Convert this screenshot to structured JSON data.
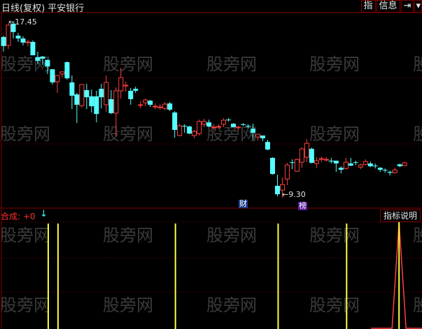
{
  "header": {
    "period": "日线(复权)",
    "stock_name": "平安银行"
  },
  "toolbar": {
    "indicator": "指",
    "info": "信息",
    "next_icon": "skip-forward-icon",
    "menu_icon": "dropdown-icon"
  },
  "watermark": "股旁网",
  "markers": {
    "finance": "财",
    "ranking": "榜"
  },
  "indicator": {
    "label": "合成: +0",
    "arrow_icon": "arrow-down-icon",
    "help_button": "指标说明"
  },
  "colors": {
    "up": "#ff4040",
    "down": "#54ffff",
    "grid": "#800000",
    "signal": "#ffff40",
    "spike": "#ff4040"
  },
  "chart_data": {
    "type": "candlestick",
    "high_label": "17.45",
    "low_label": "9.30",
    "ylim": [
      9.0,
      17.9
    ],
    "candles": [
      [
        16.77,
        16.83,
        16.09,
        16.35
      ],
      [
        16.38,
        17.42,
        16.22,
        17.32
      ],
      [
        17.39,
        17.45,
        16.7,
        17.0
      ],
      [
        16.83,
        16.96,
        16.54,
        16.7
      ],
      [
        16.7,
        16.8,
        16.38,
        16.51
      ],
      [
        16.51,
        16.64,
        16.35,
        16.54
      ],
      [
        16.54,
        16.61,
        15.92,
        15.92
      ],
      [
        15.83,
        16.09,
        15.5,
        15.66
      ],
      [
        15.86,
        15.89,
        15.47,
        15.76
      ],
      [
        15.7,
        15.73,
        15.05,
        15.4
      ],
      [
        15.27,
        15.27,
        14.56,
        14.66
      ],
      [
        14.69,
        14.98,
        14.17,
        14.98
      ],
      [
        15.05,
        15.15,
        14.88,
        15.15
      ],
      [
        15.6,
        15.63,
        14.79,
        14.85
      ],
      [
        14.66,
        14.98,
        13.42,
        14.04
      ],
      [
        14.1,
        14.17,
        12.77,
        13.62
      ],
      [
        13.58,
        14.59,
        13.49,
        14.56
      ],
      [
        14.3,
        14.59,
        13.42,
        13.97
      ],
      [
        14.01,
        14.33,
        13.26,
        13.55
      ],
      [
        14.01,
        14.27,
        12.8,
        13.19
      ],
      [
        14.36,
        14.59,
        13.45,
        13.97
      ],
      [
        13.62,
        14.98,
        13.29,
        14.66
      ],
      [
        13.88,
        14.3,
        13.19,
        13.23
      ],
      [
        13.23,
        14.43,
        12.15,
        14.27
      ],
      [
        14.27,
        15.34,
        13.91,
        14.88
      ],
      [
        14.49,
        14.69,
        14.23,
        14.53
      ],
      [
        14.27,
        14.4,
        13.62,
        13.88
      ],
      [
        14.36,
        14.46,
        14.17,
        14.27
      ],
      [
        13.59,
        13.78,
        13.45,
        13.62
      ],
      [
        13.71,
        13.91,
        13.55,
        13.84
      ],
      [
        13.81,
        13.84,
        13.52,
        13.62
      ],
      [
        13.52,
        13.68,
        13.42,
        13.55
      ],
      [
        13.49,
        13.65,
        13.39,
        13.52
      ],
      [
        13.45,
        13.75,
        13.36,
        13.65
      ],
      [
        13.68,
        13.75,
        13.32,
        13.39
      ],
      [
        13.26,
        13.32,
        12.09,
        12.45
      ],
      [
        12.19,
        12.74,
        12.15,
        12.64
      ],
      [
        12.64,
        12.71,
        12.32,
        12.61
      ],
      [
        12.61,
        12.64,
        12.25,
        12.28
      ],
      [
        12.19,
        12.45,
        12.06,
        12.38
      ],
      [
        12.28,
        12.93,
        12.19,
        12.84
      ],
      [
        12.71,
        12.97,
        12.58,
        12.84
      ],
      [
        12.8,
        12.93,
        12.58,
        12.61
      ],
      [
        12.56,
        12.71,
        12.45,
        12.58
      ],
      [
        12.58,
        12.71,
        12.51,
        12.61
      ],
      [
        12.71,
        13.0,
        12.58,
        12.9
      ],
      [
        12.93,
        13.0,
        12.84,
        12.9
      ],
      [
        12.74,
        12.77,
        12.58,
        12.58
      ],
      [
        12.56,
        12.64,
        12.45,
        12.58
      ],
      [
        12.71,
        12.77,
        12.64,
        12.68
      ],
      [
        12.64,
        12.71,
        12.51,
        12.61
      ],
      [
        12.51,
        12.74,
        11.99,
        12.32
      ],
      [
        12.12,
        12.25,
        11.96,
        12.25
      ],
      [
        12.19,
        12.19,
        11.93,
        12.06
      ],
      [
        11.89,
        11.99,
        11.5,
        11.54
      ],
      [
        11.15,
        11.18,
        10.37,
        10.4
      ],
      [
        9.85,
        10.37,
        9.36,
        9.46
      ],
      [
        9.65,
        10.24,
        9.3,
        9.91
      ],
      [
        10.17,
        10.92,
        9.88,
        10.82
      ],
      [
        10.95,
        11.08,
        10.63,
        10.92
      ],
      [
        10.53,
        11.12,
        10.5,
        11.08
      ],
      [
        10.95,
        11.63,
        10.69,
        11.57
      ],
      [
        11.18,
        12.02,
        10.95,
        11.83
      ],
      [
        11.57,
        11.63,
        10.89,
        10.92
      ],
      [
        10.89,
        11.18,
        10.69,
        11.02
      ],
      [
        11.08,
        11.21,
        10.95,
        11.12
      ],
      [
        11.05,
        11.18,
        10.98,
        11.08
      ],
      [
        11.02,
        11.15,
        10.89,
        10.98
      ],
      [
        11.02,
        11.02,
        10.5,
        10.89
      ],
      [
        10.69,
        10.76,
        10.43,
        10.6
      ],
      [
        10.66,
        11.15,
        10.6,
        10.95
      ],
      [
        10.89,
        11.15,
        10.76,
        10.79
      ],
      [
        10.95,
        11.02,
        10.82,
        10.92
      ],
      [
        10.72,
        10.89,
        10.63,
        10.82
      ],
      [
        10.85,
        11.08,
        10.82,
        10.98
      ],
      [
        10.89,
        10.98,
        10.72,
        10.76
      ],
      [
        10.79,
        10.89,
        10.66,
        10.76
      ],
      [
        10.69,
        10.72,
        10.5,
        10.6
      ],
      [
        10.59,
        10.66,
        10.46,
        10.56
      ],
      [
        10.5,
        10.56,
        10.33,
        10.46
      ],
      [
        10.46,
        10.69,
        10.43,
        10.59
      ],
      [
        10.85,
        10.89,
        10.72,
        10.76
      ],
      [
        10.79,
        10.98,
        10.76,
        10.92
      ]
    ],
    "candle_format": [
      "open",
      "high",
      "low",
      "close"
    ],
    "marker_candles": {
      "finance": 49,
      "ranking": 62
    },
    "signals": {
      "bar_candles": [
        9,
        11,
        35,
        56,
        70
      ],
      "spike_candle": 80
    }
  }
}
